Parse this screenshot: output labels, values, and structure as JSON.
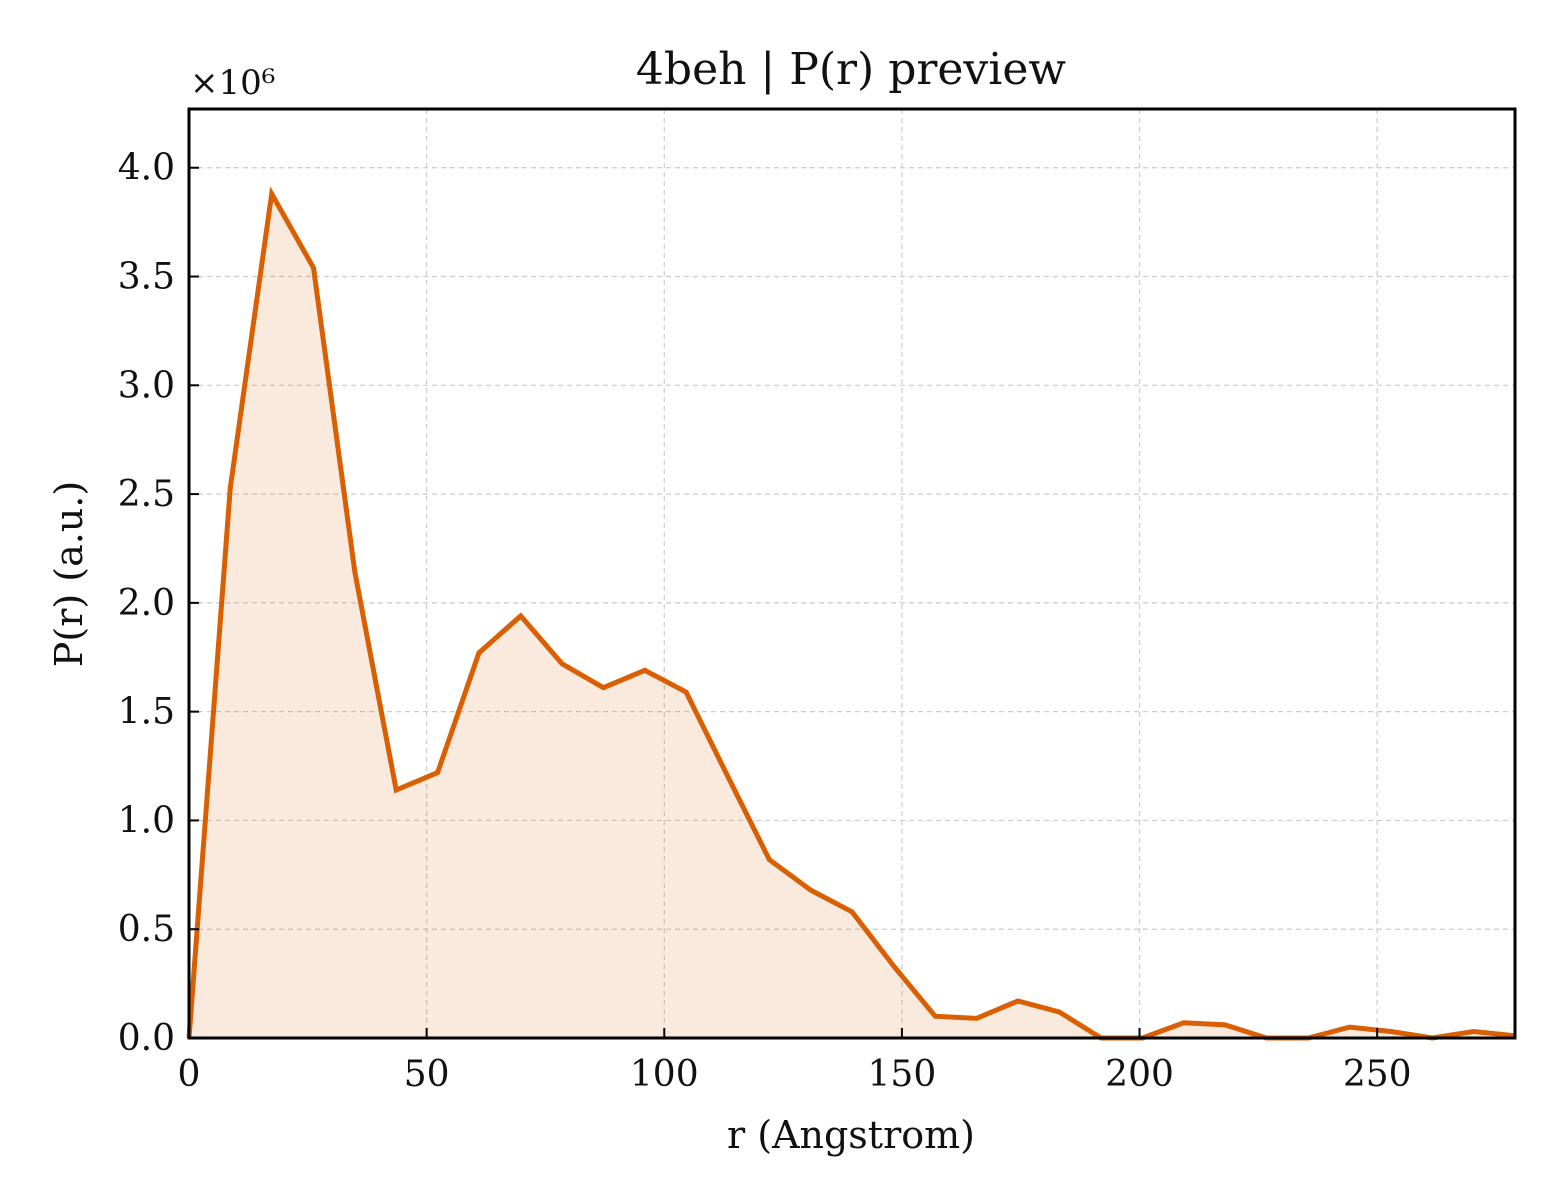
{
  "chart_data": {
    "type": "area",
    "title": "4beh | P(r) preview",
    "xlabel": "r (Angstrom)",
    "ylabel": "P(r) (a.u.)",
    "y_multiplier_label": "×10⁶",
    "xlim": [
      0,
      279
    ],
    "ylim": [
      0,
      4.27
    ],
    "x_ticks": [
      0,
      50,
      100,
      150,
      200,
      250
    ],
    "x_tick_labels": [
      "0",
      "50",
      "100",
      "150",
      "200",
      "250"
    ],
    "y_ticks": [
      0,
      0.5,
      1.0,
      1.5,
      2.0,
      2.5,
      3.0,
      3.5,
      4.0
    ],
    "y_tick_labels": [
      "0.0",
      "0.5",
      "1.0",
      "1.5",
      "2.0",
      "2.5",
      "3.0",
      "3.5",
      "4.0"
    ],
    "grid": true,
    "colors": {
      "line": "#d95f02",
      "fill": "#d95f02"
    },
    "series": [
      {
        "x": [
          0,
          8.7,
          17.4,
          26.2,
          34.9,
          43.6,
          52.3,
          61.0,
          69.8,
          78.5,
          87.2,
          95.9,
          104.6,
          113.4,
          122.1,
          130.8,
          139.5,
          148.3,
          157.0,
          165.7,
          174.4,
          183.1,
          191.9,
          200.6,
          209.3,
          218.0,
          226.7,
          235.5,
          244.2,
          252.9,
          261.6,
          270.3,
          279.1
        ],
        "values": [
          0.0,
          2.53,
          3.88,
          3.54,
          2.14,
          1.14,
          1.22,
          1.77,
          1.94,
          1.72,
          1.61,
          1.69,
          1.59,
          1.2,
          0.82,
          0.68,
          0.58,
          0.33,
          0.1,
          0.09,
          0.17,
          0.12,
          0.0,
          0.0,
          0.07,
          0.06,
          0.0,
          0.0,
          0.05,
          0.03,
          0.0,
          0.03,
          0.01
        ]
      }
    ]
  }
}
